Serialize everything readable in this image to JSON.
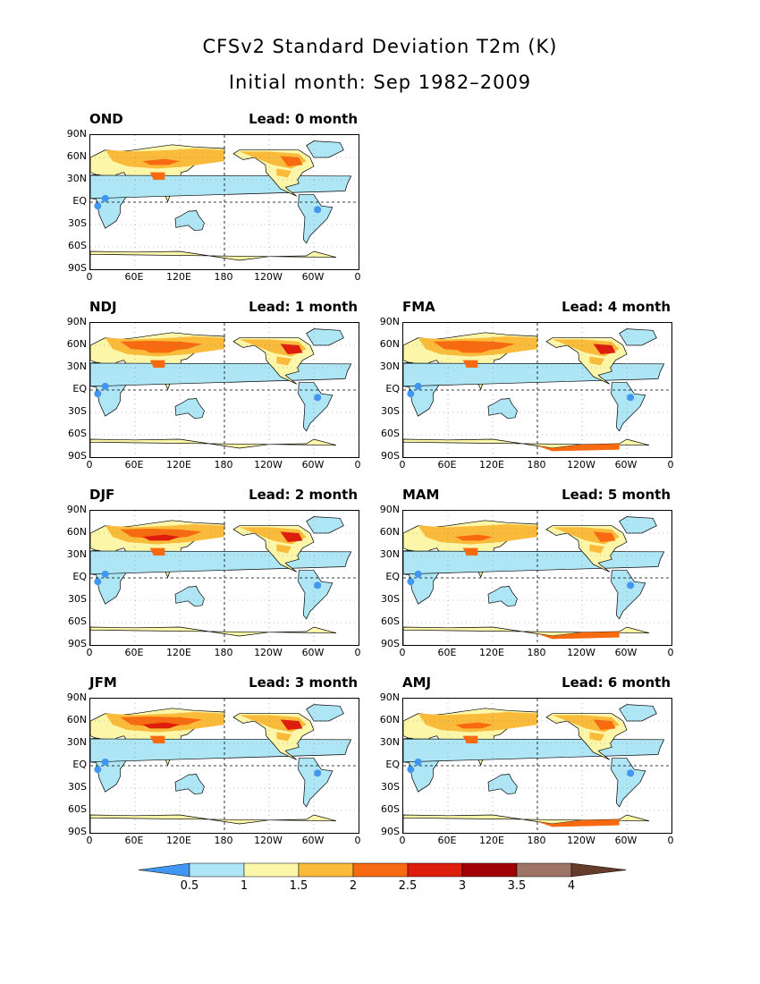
{
  "title": "CFSv2 Standard Deviation T2m (K)",
  "subtitle": "Initial month: Sep 1982–2009",
  "lat_labels": [
    "90N",
    "60N",
    "30N",
    "EQ",
    "30S",
    "60S",
    "90S"
  ],
  "lon_labels": [
    "0",
    "60E",
    "120E",
    "180",
    "120W",
    "60W",
    "0"
  ],
  "panels": [
    {
      "season": "OND",
      "lead": "Lead: 0 month",
      "intensity": 0.35
    },
    {
      "season": "NDJ",
      "lead": "Lead: 1 month",
      "intensity": 0.55
    },
    {
      "season": "FMA",
      "lead": "Lead: 4 month",
      "intensity": 0.5
    },
    {
      "season": "DJF",
      "lead": "Lead: 2 month",
      "intensity": 0.6
    },
    {
      "season": "MAM",
      "lead": "Lead: 5 month",
      "intensity": 0.45
    },
    {
      "season": "JFM",
      "lead": "Lead: 3 month",
      "intensity": 0.6
    },
    {
      "season": "AMJ",
      "lead": "Lead: 6 month",
      "intensity": 0.4
    }
  ],
  "colorbar": {
    "ticks": [
      "0.5",
      "1",
      "1.5",
      "2",
      "2.5",
      "3",
      "3.5",
      "4"
    ],
    "colors": [
      "#4096f0",
      "#aee6f6",
      "#fbf6a8",
      "#fbbb3a",
      "#f86a10",
      "#de1e0c",
      "#a10104",
      "#9d7466",
      "#653b2c"
    ]
  }
}
